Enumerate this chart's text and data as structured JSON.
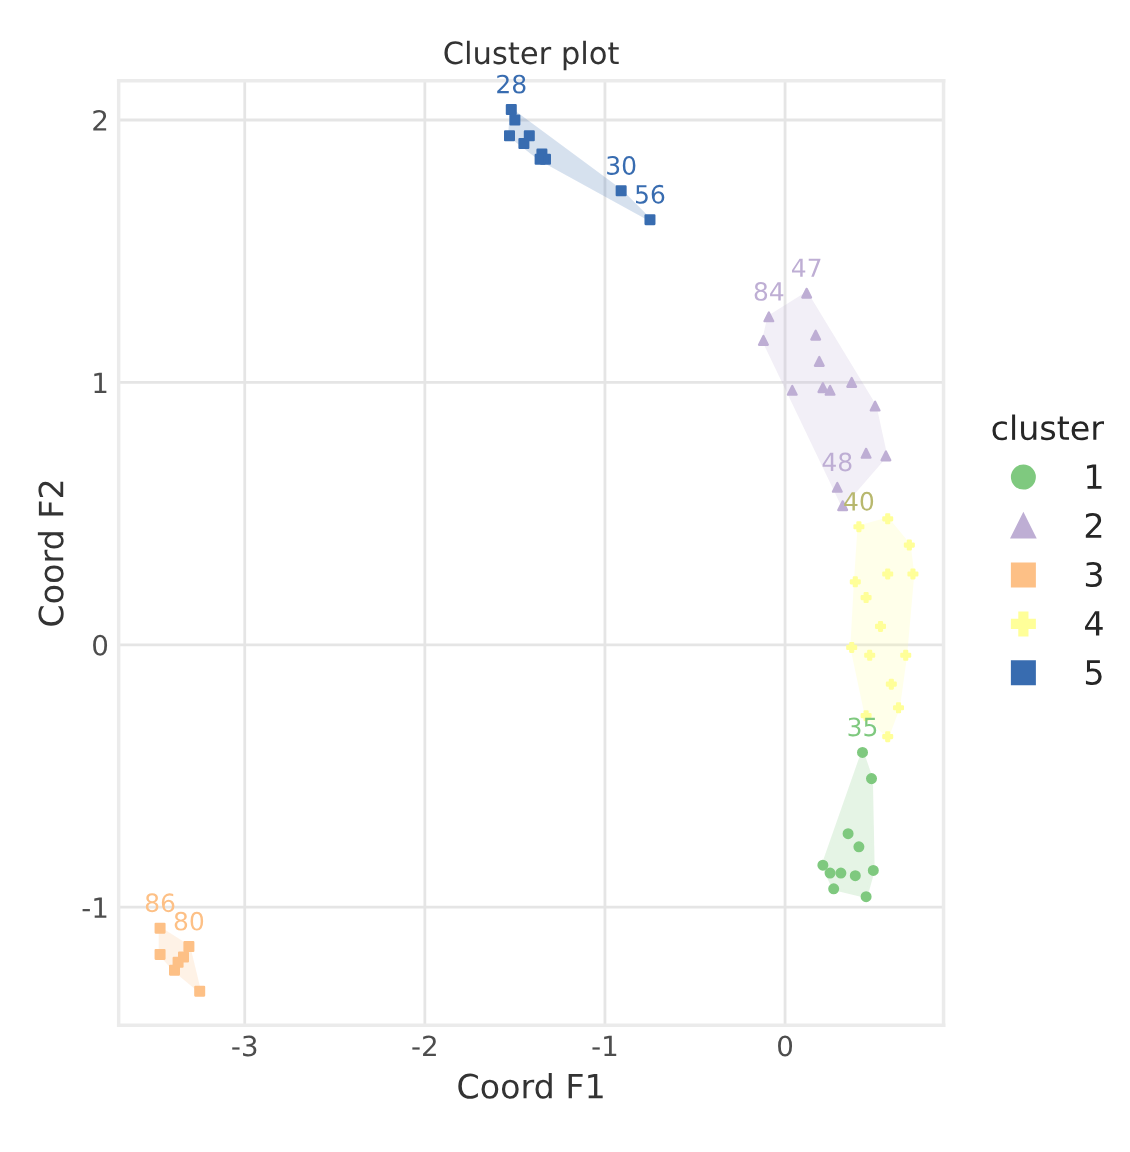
{
  "chart_data": {
    "type": "scatter",
    "title": "Cluster plot",
    "xlabel": "Coord F1",
    "ylabel": "Coord F2",
    "legend_title": "cluster",
    "legend": "right",
    "grid": true,
    "xlim": [
      -3.7,
      0.88
    ],
    "ylim": [
      -1.45,
      2.15
    ],
    "xticks": [
      -3,
      -2,
      -1,
      0
    ],
    "yticks": [
      -1,
      0,
      1,
      2
    ],
    "series": [
      {
        "name": "1",
        "color": "#7fc97f",
        "marker": "circle",
        "x": [
          0.43,
          0.48,
          0.21,
          0.27,
          0.45,
          0.49,
          0.35,
          0.31,
          0.39,
          0.25,
          0.41
        ],
        "values": [
          -0.41,
          -0.51,
          -0.84,
          -0.93,
          -0.96,
          -0.86,
          -0.72,
          -0.87,
          -0.88,
          -0.87,
          -0.77
        ]
      },
      {
        "name": "2",
        "color": "#beaed4",
        "marker": "triangle",
        "x": [
          0.12,
          -0.09,
          -0.12,
          0.04,
          0.32,
          0.29,
          0.56,
          0.5,
          0.21,
          0.25,
          0.37,
          0.45,
          0.17,
          0.19
        ],
        "values": [
          1.34,
          1.25,
          1.16,
          0.97,
          0.53,
          0.6,
          0.72,
          0.91,
          0.98,
          0.97,
          1.0,
          0.73,
          1.18,
          1.08
        ]
      },
      {
        "name": "3",
        "color": "#fdc086",
        "marker": "square",
        "x": [
          -3.47,
          -3.47,
          -3.25,
          -3.31,
          -3.37,
          -3.39,
          -3.34
        ],
        "values": [
          -1.08,
          -1.18,
          -1.32,
          -1.15,
          -1.21,
          -1.24,
          -1.19
        ]
      },
      {
        "name": "4",
        "color": "#ffff99",
        "marker": "cross",
        "x": [
          0.41,
          0.57,
          0.69,
          0.71,
          0.67,
          0.63,
          0.57,
          0.45,
          0.37,
          0.39,
          0.57,
          0.53,
          0.47,
          0.59,
          0.45
        ],
        "values": [
          0.45,
          0.48,
          0.38,
          0.27,
          -0.04,
          -0.24,
          -0.35,
          -0.27,
          -0.01,
          0.24,
          0.27,
          0.07,
          -0.04,
          -0.15,
          0.18
        ]
      },
      {
        "name": "5",
        "color": "#386cb0",
        "marker": "square",
        "x": [
          -1.52,
          -1.53,
          -1.5,
          -1.45,
          -1.42,
          -1.35,
          -1.33,
          -1.36,
          -0.91,
          -0.75
        ],
        "values": [
          2.04,
          1.94,
          2.0,
          1.91,
          1.94,
          1.87,
          1.85,
          1.85,
          1.73,
          1.62
        ]
      }
    ],
    "annotations": [
      {
        "text": "28",
        "x": -1.52,
        "y": 2.04
      },
      {
        "text": "30",
        "x": -0.91,
        "y": 1.73
      },
      {
        "text": "56",
        "x": -0.75,
        "y": 1.62
      },
      {
        "text": "47",
        "x": 0.12,
        "y": 1.34
      },
      {
        "text": "84",
        "x": -0.09,
        "y": 1.25
      },
      {
        "text": "48",
        "x": 0.29,
        "y": 0.6
      },
      {
        "text": "40",
        "x": 0.41,
        "y": 0.45
      },
      {
        "text": "35",
        "x": 0.43,
        "y": -0.41
      },
      {
        "text": "86",
        "x": -3.47,
        "y": -1.08
      },
      {
        "text": "80",
        "x": -3.31,
        "y": -1.15
      }
    ]
  }
}
